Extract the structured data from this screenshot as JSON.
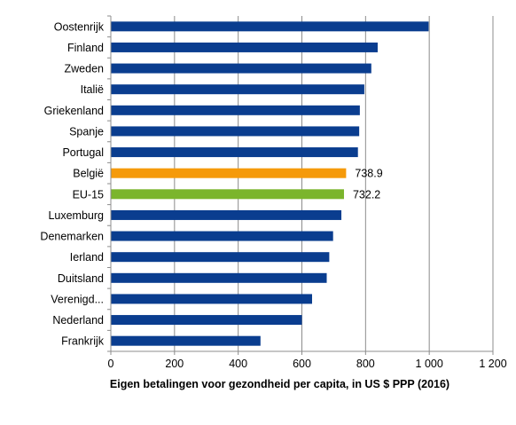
{
  "chart_data": {
    "type": "bar",
    "orientation": "horizontal",
    "xlabel": "Eigen betalingen voor gezondheid per capita, in US $ PPP (2016)",
    "xlim": [
      0,
      1200
    ],
    "xticks": [
      0,
      200,
      400,
      600,
      800,
      1000,
      1200
    ],
    "xtick_labels": [
      "0",
      "200",
      "400",
      "600",
      "800",
      "1 000",
      "1 200"
    ],
    "grid": "vertical",
    "categories": [
      "Oostenrijk",
      "Finland",
      "Zweden",
      "Italië",
      "Griekenland",
      "Spanje",
      "Portugal",
      "België",
      "EU-15",
      "Luxemburg",
      "Denemarken",
      "Ierland",
      "Duitsland",
      "Verenigd...",
      "Nederland",
      "Frankrijk"
    ],
    "values": [
      998,
      838,
      818,
      796,
      782,
      780,
      776,
      738.9,
      732.2,
      724,
      698,
      686,
      678,
      632,
      600,
      470
    ],
    "data_labels": [
      "",
      "",
      "",
      "",
      "",
      "",
      "",
      "738.9",
      "732.2",
      "",
      "",
      "",
      "",
      "",
      "",
      ""
    ],
    "colors": [
      "#0a3d8f",
      "#0a3d8f",
      "#0a3d8f",
      "#0a3d8f",
      "#0a3d8f",
      "#0a3d8f",
      "#0a3d8f",
      "#f59a0a",
      "#7bb52c",
      "#0a3d8f",
      "#0a3d8f",
      "#0a3d8f",
      "#0a3d8f",
      "#0a3d8f",
      "#0a3d8f",
      "#0a3d8f"
    ],
    "default_color": "#0a3d8f",
    "highlight_colors": {
      "België": "#f59a0a",
      "EU-15": "#7bb52c"
    }
  }
}
